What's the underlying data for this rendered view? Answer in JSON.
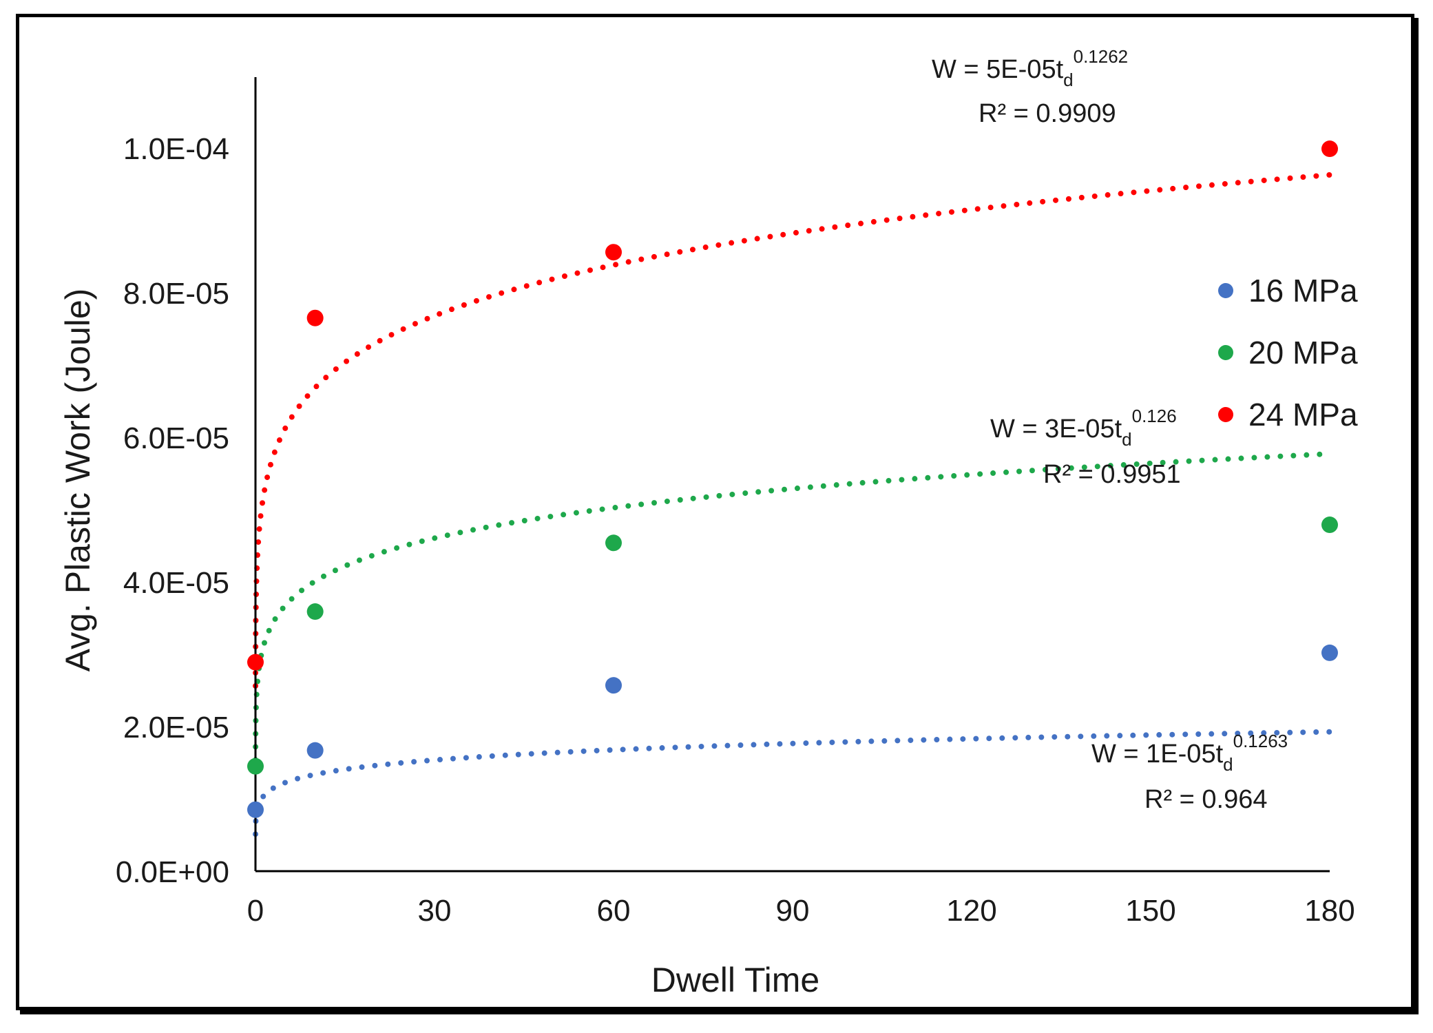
{
  "chart_data": {
    "type": "scatter",
    "title": "",
    "xlabel": "Dwell Time",
    "ylabel": "Avg. Plastic Work (Joule)",
    "xlim": [
      0,
      180
    ],
    "ylim": [
      0,
      0.00011
    ],
    "xticks": [
      0,
      30,
      60,
      90,
      120,
      150,
      180
    ],
    "xtick_labels": [
      "0",
      "30",
      "60",
      "90",
      "120",
      "150",
      "180"
    ],
    "yticks": [
      0,
      2e-05,
      4e-05,
      6e-05,
      8e-05,
      0.0001
    ],
    "ytick_labels": [
      "0.0E+00",
      "2.0E-05",
      "4.0E-05",
      "6.0E-05",
      "8.0E-05",
      "1.0E-04"
    ],
    "grid": false,
    "legend_position": "right",
    "series": [
      {
        "name": "16 MPa",
        "color": "#4472c4",
        "x": [
          0,
          10,
          60,
          180
        ],
        "y": [
          8.5e-06,
          1.67e-05,
          2.57e-05,
          3.02e-05
        ],
        "trendline": {
          "type": "power",
          "a": 1e-05,
          "b": 0.1263,
          "equation": "W = 1E-05t",
          "equation_sub": "d",
          "equation_exp": "0.1263",
          "r2": "R² = 0.964"
        }
      },
      {
        "name": "20 MPa",
        "color": "#1ea84b",
        "x": [
          0,
          10,
          60,
          180
        ],
        "y": [
          1.45e-05,
          3.59e-05,
          4.54e-05,
          4.79e-05
        ],
        "trendline": {
          "type": "power",
          "a": 3e-05,
          "b": 0.126,
          "equation": "W = 3E-05t",
          "equation_sub": "d",
          "equation_exp": "0.126",
          "r2": "R² = 0.9951"
        }
      },
      {
        "name": "24 MPa",
        "color": "#ff0000",
        "x": [
          0,
          10,
          60,
          180
        ],
        "y": [
          2.89e-05,
          7.65e-05,
          8.56e-05,
          9.99e-05
        ],
        "trendline": {
          "type": "power",
          "a": 5e-05,
          "b": 0.1262,
          "equation": "W = 5E-05t",
          "equation_sub": "d",
          "equation_exp": "0.1262",
          "r2": "R² = 0.9909"
        }
      }
    ]
  }
}
